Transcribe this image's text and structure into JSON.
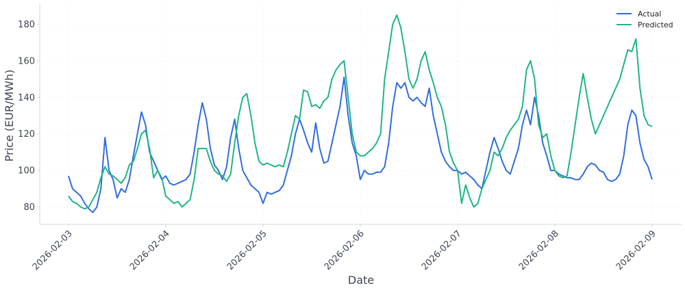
{
  "chart_data": {
    "type": "line",
    "xlabel": "Date",
    "ylabel": "Price (EUR/MWh)",
    "xticks": [
      "2026-02-03",
      "2026-02-04",
      "2026-02-05",
      "2026-02-06",
      "2026-02-07",
      "2026-02-08",
      "2026-02-09"
    ],
    "ylim": [
      70.5,
      191
    ],
    "yticks": [
      80,
      100,
      120,
      140,
      160,
      180
    ],
    "grid": true,
    "legend": "upper right",
    "series": [
      {
        "name": "Actual",
        "color": "#2f6ce0",
        "values": [
          97,
          90,
          88,
          86,
          82,
          79,
          77,
          80,
          90,
          118,
          100,
          95,
          85,
          90,
          88,
          95,
          108,
          120,
          132,
          125,
          110,
          105,
          100,
          95,
          97,
          93,
          92,
          93,
          94,
          95,
          98,
          110,
          125,
          137,
          128,
          112,
          103,
          100,
          95,
          102,
          118,
          128,
          112,
          100,
          96,
          92,
          90,
          88,
          82,
          88,
          87,
          88,
          89,
          92,
          100,
          108,
          120,
          128,
          122,
          115,
          110,
          126,
          112,
          104,
          105,
          115,
          125,
          135,
          151,
          130,
          115,
          108,
          95,
          100,
          98,
          98,
          99,
          99,
          102,
          115,
          135,
          148,
          145,
          148,
          140,
          138,
          140,
          137,
          135,
          145,
          130,
          120,
          110,
          105,
          102,
          100,
          100,
          98,
          99,
          97,
          95,
          92,
          90,
          100,
          110,
          118,
          112,
          105,
          100,
          98,
          105,
          112,
          125,
          133,
          125,
          140,
          130,
          115,
          108,
          100,
          100,
          98,
          97,
          96,
          96,
          95,
          95,
          98,
          102,
          104,
          103,
          100,
          99,
          95,
          94,
          95,
          98,
          108,
          125,
          133,
          130,
          115,
          106,
          102,
          95
        ]
      },
      {
        "name": "Predicted",
        "color": "#1db584",
        "values": [
          86,
          83,
          82,
          80,
          79,
          80,
          84,
          88,
          96,
          102,
          98,
          97,
          95,
          93,
          96,
          103,
          105,
          112,
          120,
          122,
          112,
          96,
          100,
          96,
          86,
          84,
          82,
          83,
          80,
          82,
          84,
          95,
          112,
          112,
          112,
          105,
          100,
          98,
          97,
          94,
          98,
          115,
          130,
          140,
          142,
          130,
          115,
          105,
          103,
          104,
          103,
          102,
          103,
          102,
          110,
          120,
          130,
          128,
          144,
          143,
          135,
          136,
          134,
          138,
          140,
          150,
          155,
          158,
          160,
          140,
          120,
          110,
          108,
          108,
          110,
          112,
          115,
          120,
          150,
          165,
          180,
          185,
          178,
          165,
          150,
          145,
          150,
          160,
          165,
          155,
          148,
          140,
          135,
          125,
          110,
          104,
          100,
          82,
          92,
          85,
          80,
          82,
          90,
          95,
          100,
          110,
          108,
          112,
          118,
          122,
          125,
          128,
          135,
          155,
          160,
          150,
          125,
          118,
          120,
          108,
          100,
          97,
          96,
          97,
          110,
          125,
          140,
          153,
          140,
          128,
          120,
          125,
          130,
          135,
          140,
          145,
          150,
          158,
          166,
          165,
          172,
          145,
          130,
          125,
          124
        ]
      }
    ]
  }
}
